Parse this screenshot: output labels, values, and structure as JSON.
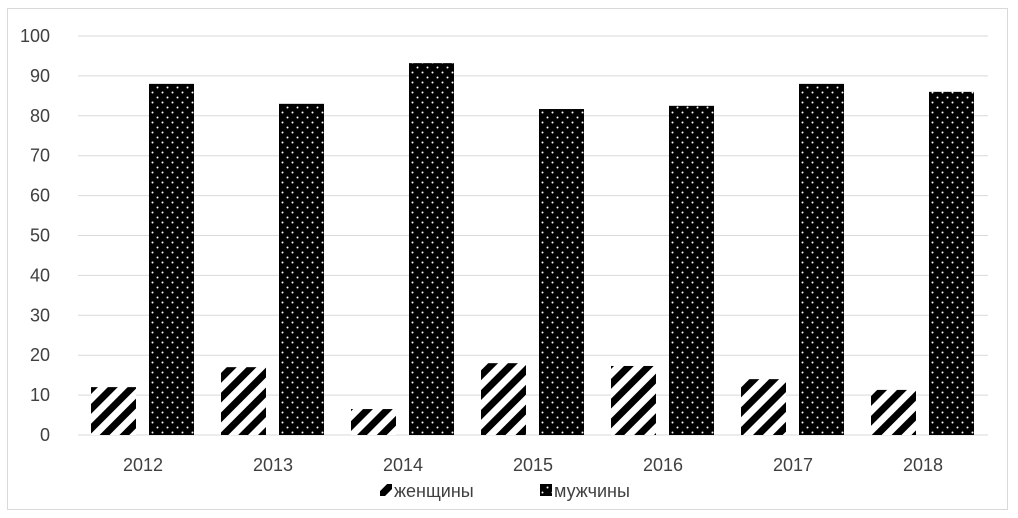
{
  "chart_data": {
    "type": "bar",
    "categories": [
      "2012",
      "2013",
      "2014",
      "2015",
      "2016",
      "2017",
      "2018"
    ],
    "series": [
      {
        "name": "женщины",
        "values": [
          12,
          17,
          6.5,
          18,
          17.3,
          14,
          11.3
        ],
        "pattern": "diagonal-stripes"
      },
      {
        "name": "мужчины",
        "values": [
          88,
          83,
          93.2,
          81.7,
          82.5,
          88,
          86
        ],
        "pattern": "black-dots"
      }
    ],
    "ylim": [
      0,
      100
    ],
    "yticks": [
      "0",
      "10",
      "20",
      "30",
      "40",
      "50",
      "60",
      "70",
      "80",
      "90",
      "100"
    ],
    "grid": true,
    "legend_position": "bottom",
    "colors": {
      "grid": "#d9d9d9",
      "bar_fill": "#000000",
      "text": "#404040"
    }
  }
}
